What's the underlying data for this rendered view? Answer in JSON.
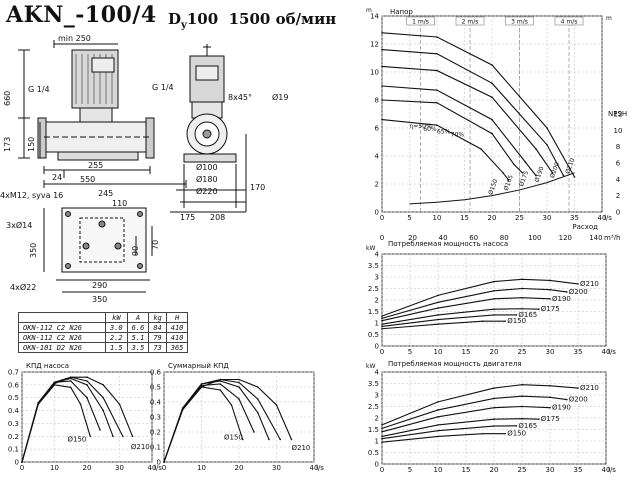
{
  "header": {
    "model": "AKN_-100/4",
    "dn": "D",
    "dn_sub": "y",
    "dn_value": "100",
    "speed": "1500 об/мин"
  },
  "dimensions": {
    "min250": "min 250",
    "g14_left": "G 1/4",
    "g14_right": "G 1/4",
    "d660": "660",
    "d173": "173",
    "d150": "150",
    "d24": "24",
    "d255": "255",
    "d550": "550",
    "m12": "4xM12, syva 16",
    "d245": "245",
    "bolt": "8x45°",
    "d19": "Ø19",
    "d100": "Ø100",
    "d180": "Ø180",
    "d220": "Ø220",
    "d170": "170",
    "d175": "175",
    "d208": "208",
    "holes14": "3xØ14",
    "holes22": "4xØ22",
    "d110": "110",
    "d350a": "350",
    "d290": "290",
    "d350b": "350",
    "d70": "70",
    "d90": "90"
  },
  "spec_table": {
    "headers": [
      "",
      "kW",
      "A",
      "kg",
      "H"
    ],
    "rows": [
      [
        "OKN-112 C2 N26",
        "3.0",
        "6.6",
        "84",
        "410"
      ],
      [
        "OKN-112 C2 N26",
        "2.2",
        "5.1",
        "79",
        "410"
      ],
      [
        "OKN-101 D2 N26",
        "1.5",
        "3.5",
        "73",
        "365"
      ]
    ]
  },
  "chart_data": [
    {
      "type": "line",
      "title": "КПД насоса",
      "ylabel": "",
      "xlabel": "",
      "x_unit": "l/s",
      "xlim": [
        0,
        40
      ],
      "ylim": [
        0,
        0.7
      ],
      "xticks": [
        0,
        10,
        20,
        30,
        40
      ],
      "yticks": [
        0,
        0.1,
        0.2,
        0.3,
        0.4,
        0.5,
        0.6,
        0.7
      ],
      "labels": [
        "Ø150",
        "Ø210"
      ],
      "series": [
        {
          "name": "Ø150",
          "x": [
            0,
            5,
            10,
            15,
            18,
            21
          ],
          "y": [
            0,
            0.45,
            0.6,
            0.58,
            0.45,
            0.2
          ]
        },
        {
          "name": "",
          "x": [
            0,
            5,
            10,
            15,
            20,
            24
          ],
          "y": [
            0,
            0.46,
            0.62,
            0.63,
            0.5,
            0.25
          ]
        },
        {
          "name": "",
          "x": [
            0,
            5,
            10,
            15,
            20,
            25,
            28
          ],
          "y": [
            0,
            0.46,
            0.62,
            0.65,
            0.6,
            0.4,
            0.2
          ]
        },
        {
          "name": "",
          "x": [
            0,
            5,
            10,
            15,
            20,
            25,
            31
          ],
          "y": [
            0,
            0.46,
            0.62,
            0.66,
            0.63,
            0.5,
            0.2
          ]
        },
        {
          "name": "Ø210",
          "x": [
            0,
            5,
            10,
            15,
            20,
            25,
            30,
            34
          ],
          "y": [
            0,
            0.45,
            0.61,
            0.66,
            0.66,
            0.6,
            0.45,
            0.2
          ]
        }
      ]
    },
    {
      "type": "line",
      "title": "Суммарный КПД",
      "ylabel": "",
      "xlabel": "",
      "x_unit": "l/s",
      "xlim": [
        0,
        40
      ],
      "ylim": [
        0,
        0.6
      ],
      "xticks": [
        0,
        10,
        20,
        30,
        40
      ],
      "yticks": [
        0,
        0.1,
        0.2,
        0.3,
        0.4,
        0.5,
        0.6
      ],
      "labels": [
        "Ø150",
        "Ø210"
      ],
      "series": [
        {
          "name": "Ø150",
          "x": [
            0,
            5,
            10,
            15,
            18,
            21
          ],
          "y": [
            0,
            0.35,
            0.5,
            0.48,
            0.38,
            0.15
          ]
        },
        {
          "name": "",
          "x": [
            0,
            5,
            10,
            15,
            20,
            24
          ],
          "y": [
            0,
            0.36,
            0.51,
            0.52,
            0.42,
            0.2
          ]
        },
        {
          "name": "",
          "x": [
            0,
            5,
            10,
            15,
            20,
            25,
            28
          ],
          "y": [
            0,
            0.36,
            0.52,
            0.54,
            0.5,
            0.33,
            0.15
          ]
        },
        {
          "name": "",
          "x": [
            0,
            5,
            10,
            15,
            20,
            25,
            31
          ],
          "y": [
            0,
            0.36,
            0.52,
            0.55,
            0.53,
            0.42,
            0.15
          ]
        },
        {
          "name": "Ø210",
          "x": [
            0,
            5,
            10,
            15,
            20,
            25,
            30,
            34
          ],
          "y": [
            0,
            0.35,
            0.5,
            0.55,
            0.55,
            0.5,
            0.38,
            0.15
          ]
        }
      ]
    },
    {
      "type": "line",
      "title": "Напор",
      "ylabel": "m",
      "xlabel": "Расход",
      "x_unit": "l/s",
      "x2_unit": "m³/h",
      "right_axis_label": "NPSH",
      "right_unit": "m",
      "xlim": [
        0,
        40
      ],
      "ylim": [
        0,
        14
      ],
      "xticks": [
        0,
        5,
        10,
        15,
        20,
        25,
        30,
        35,
        40
      ],
      "yticks": [
        0,
        2,
        4,
        6,
        8,
        10,
        12,
        14
      ],
      "x2ticks": [
        0,
        20,
        40,
        60,
        80,
        100,
        120,
        140
      ],
      "rticks": [
        0,
        2,
        4,
        6,
        8,
        10,
        12
      ],
      "velocity_labels": [
        "1 m/s",
        "2 m/s",
        "3 m/s",
        "4 m/s"
      ],
      "efficiency_labels": [
        "η=50%",
        "60%",
        "65%",
        "70%"
      ],
      "labels": [
        "Ø150",
        "Ø165",
        "Ø175",
        "Ø190",
        "Ø200",
        "Ø210"
      ],
      "series": [
        {
          "name": "Ø210",
          "x": [
            0,
            10,
            20,
            30,
            35
          ],
          "y": [
            12.8,
            12.5,
            10.5,
            6.0,
            2.5
          ]
        },
        {
          "name": "Ø200",
          "x": [
            0,
            10,
            20,
            30,
            33
          ],
          "y": [
            11.6,
            11.3,
            9.2,
            4.8,
            2.6
          ]
        },
        {
          "name": "Ø190",
          "x": [
            0,
            10,
            20,
            28,
            31
          ],
          "y": [
            10.4,
            10.1,
            8.2,
            4.5,
            2.8
          ]
        },
        {
          "name": "Ø175",
          "x": [
            0,
            10,
            20,
            26,
            28
          ],
          "y": [
            9.0,
            8.7,
            6.6,
            3.6,
            2.6
          ]
        },
        {
          "name": "Ø165",
          "x": [
            0,
            10,
            20,
            24,
            25.5
          ],
          "y": [
            8.0,
            7.8,
            5.6,
            3.4,
            2.8
          ]
        },
        {
          "name": "Ø150",
          "x": [
            0,
            10,
            18,
            22,
            23
          ],
          "y": [
            6.6,
            6.2,
            4.5,
            2.8,
            2.3
          ]
        }
      ],
      "npsh": {
        "x": [
          5,
          10,
          15,
          20,
          25,
          30,
          35
        ],
        "y": [
          1.0,
          1.2,
          1.5,
          2.0,
          2.7,
          3.6,
          4.8
        ]
      }
    },
    {
      "type": "line",
      "title": "Потребляемая мощность насоса",
      "ylabel": "kW",
      "x_unit": "l/s",
      "xlim": [
        0,
        40
      ],
      "ylim": [
        0,
        4.0
      ],
      "xticks": [
        0,
        5,
        10,
        15,
        20,
        25,
        30,
        35,
        40
      ],
      "yticks": [
        0,
        0.5,
        1.0,
        1.5,
        2.0,
        2.5,
        3.0,
        3.5,
        4.0
      ],
      "labels": [
        "Ø210",
        "Ø200",
        "Ø190",
        "Ø175",
        "Ø165",
        "Ø150"
      ],
      "series": [
        {
          "name": "Ø210",
          "x": [
            0,
            10,
            20,
            25,
            30,
            35
          ],
          "y": [
            1.3,
            2.2,
            2.8,
            2.9,
            2.85,
            2.7
          ]
        },
        {
          "name": "Ø200",
          "x": [
            0,
            10,
            20,
            25,
            30,
            33
          ],
          "y": [
            1.2,
            1.9,
            2.4,
            2.5,
            2.45,
            2.35
          ]
        },
        {
          "name": "Ø190",
          "x": [
            0,
            10,
            20,
            25,
            30
          ],
          "y": [
            1.1,
            1.65,
            2.05,
            2.1,
            2.05
          ]
        },
        {
          "name": "Ø175",
          "x": [
            0,
            10,
            20,
            25,
            28
          ],
          "y": [
            0.95,
            1.35,
            1.6,
            1.62,
            1.6
          ]
        },
        {
          "name": "Ø165",
          "x": [
            0,
            10,
            20,
            24
          ],
          "y": [
            0.85,
            1.15,
            1.35,
            1.35
          ]
        },
        {
          "name": "Ø150",
          "x": [
            0,
            10,
            18,
            22
          ],
          "y": [
            0.75,
            0.95,
            1.08,
            1.08
          ]
        }
      ]
    },
    {
      "type": "line",
      "title": "Потребляемая мощность двигателя",
      "ylabel": "kW",
      "x_unit": "l/s",
      "xlim": [
        0,
        40
      ],
      "ylim": [
        0,
        4.0
      ],
      "xticks": [
        0,
        5,
        10,
        15,
        20,
        25,
        30,
        35,
        40
      ],
      "yticks": [
        0,
        0.5,
        1.0,
        1.5,
        2.0,
        2.5,
        3.0,
        3.5,
        4.0
      ],
      "labels": [
        "Ø210",
        "Ø200",
        "Ø190",
        "Ø175",
        "Ø165",
        "Ø150"
      ],
      "series": [
        {
          "name": "Ø210",
          "x": [
            0,
            10,
            20,
            25,
            30,
            35
          ],
          "y": [
            1.7,
            2.7,
            3.3,
            3.45,
            3.4,
            3.3
          ]
        },
        {
          "name": "Ø200",
          "x": [
            0,
            10,
            20,
            25,
            30,
            33
          ],
          "y": [
            1.55,
            2.35,
            2.85,
            2.95,
            2.9,
            2.8
          ]
        },
        {
          "name": "Ø190",
          "x": [
            0,
            10,
            20,
            25,
            30
          ],
          "y": [
            1.4,
            2.05,
            2.45,
            2.5,
            2.45
          ]
        },
        {
          "name": "Ø175",
          "x": [
            0,
            10,
            20,
            25,
            28
          ],
          "y": [
            1.2,
            1.7,
            1.95,
            1.97,
            1.95
          ]
        },
        {
          "name": "Ø165",
          "x": [
            0,
            10,
            20,
            24
          ],
          "y": [
            1.1,
            1.45,
            1.65,
            1.66
          ]
        },
        {
          "name": "Ø150",
          "x": [
            0,
            10,
            18,
            22
          ],
          "y": [
            0.95,
            1.2,
            1.32,
            1.32
          ]
        }
      ]
    }
  ]
}
